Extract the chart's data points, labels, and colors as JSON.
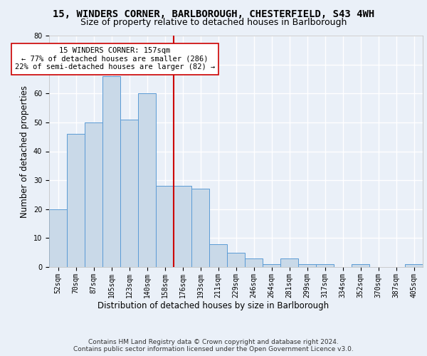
{
  "title1": "15, WINDERS CORNER, BARLBOROUGH, CHESTERFIELD, S43 4WH",
  "title2": "Size of property relative to detached houses in Barlborough",
  "xlabel": "Distribution of detached houses by size in Barlborough",
  "ylabel": "Number of detached properties",
  "bar_labels": [
    "52sqm",
    "70sqm",
    "87sqm",
    "105sqm",
    "123sqm",
    "140sqm",
    "158sqm",
    "176sqm",
    "193sqm",
    "211sqm",
    "229sqm",
    "246sqm",
    "264sqm",
    "281sqm",
    "299sqm",
    "317sqm",
    "334sqm",
    "352sqm",
    "370sqm",
    "387sqm",
    "405sqm"
  ],
  "bar_values": [
    20,
    46,
    50,
    66,
    51,
    60,
    28,
    28,
    27,
    8,
    5,
    3,
    1,
    3,
    1,
    1,
    0,
    1,
    0,
    0,
    1
  ],
  "bar_color": "#c9d9e8",
  "bar_edgecolor": "#5b9bd5",
  "vline_color": "#cc0000",
  "annotation_text": "15 WINDERS CORNER: 157sqm\n← 77% of detached houses are smaller (286)\n22% of semi-detached houses are larger (82) →",
  "annotation_box_edgecolor": "#cc0000",
  "annotation_box_facecolor": "#ffffff",
  "ylim": [
    0,
    80
  ],
  "yticks": [
    0,
    10,
    20,
    30,
    40,
    50,
    60,
    70,
    80
  ],
  "footnote": "Contains HM Land Registry data © Crown copyright and database right 2024.\nContains public sector information licensed under the Open Government Licence v3.0.",
  "bg_color": "#eaf0f8",
  "plot_bg_color": "#eaf0f8",
  "grid_color": "#ffffff",
  "title1_fontsize": 10,
  "title2_fontsize": 9,
  "xlabel_fontsize": 8.5,
  "ylabel_fontsize": 8.5,
  "tick_fontsize": 7,
  "annotation_fontsize": 7.5,
  "footnote_fontsize": 6.5,
  "vline_x": 6.5
}
